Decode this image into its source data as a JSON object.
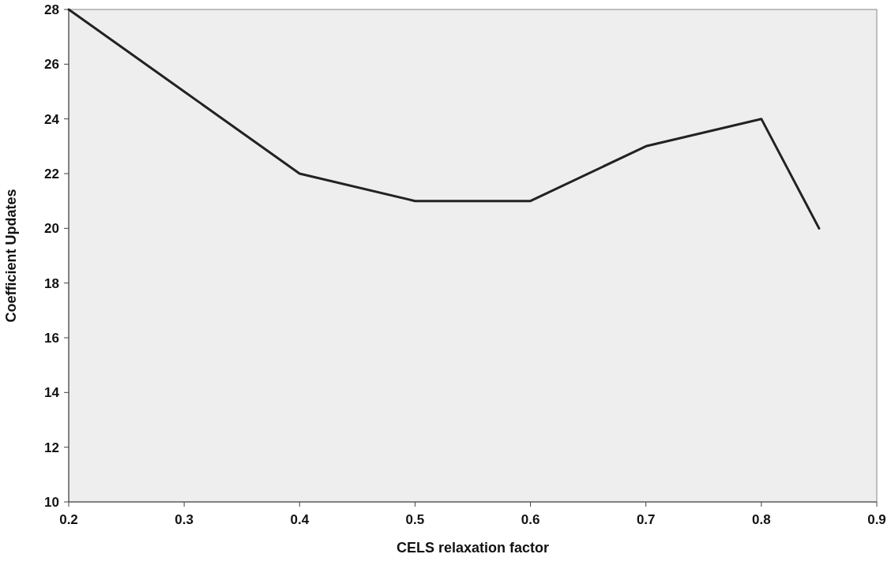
{
  "chart_data": {
    "type": "line",
    "xlabel": "CELS relaxation factor",
    "ylabel": "Coefficient Updates",
    "x": [
      0.2,
      0.3,
      0.4,
      0.5,
      0.6,
      0.7,
      0.8,
      0.85
    ],
    "series": [
      {
        "color": "#222222",
        "values": [
          28,
          25,
          22,
          21,
          21,
          23,
          24,
          20
        ]
      }
    ],
    "xlim": [
      0.2,
      0.9
    ],
    "xticks": [
      {
        "value": 0.2,
        "label": "0.2"
      },
      {
        "value": 0.3,
        "label": "0.3"
      },
      {
        "value": 0.4,
        "label": "0.4"
      },
      {
        "value": 0.5,
        "label": "0.5"
      },
      {
        "value": 0.6,
        "label": "0.6"
      },
      {
        "value": 0.7,
        "label": "0.7"
      },
      {
        "value": 0.8,
        "label": "0.8"
      },
      {
        "value": 0.9,
        "label": "0.9"
      }
    ],
    "ylim": [
      10,
      28
    ],
    "yticks": [
      10,
      12,
      14,
      16,
      18,
      20,
      22,
      24,
      26,
      28
    ],
    "grid": false
  }
}
